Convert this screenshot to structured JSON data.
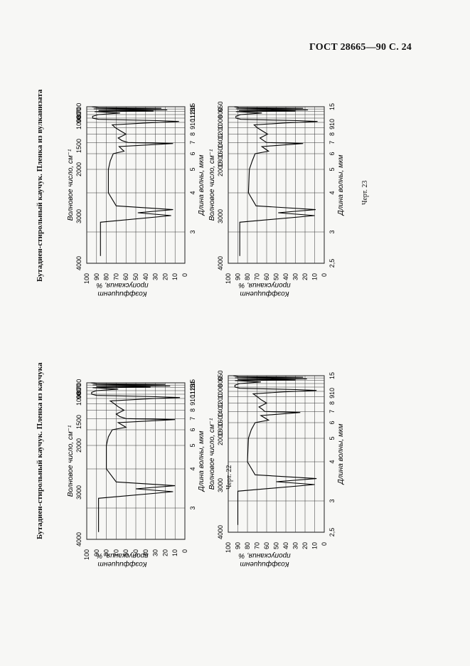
{
  "header": {
    "title": "ГОСТ 28665—90 С. 24"
  },
  "figures": [
    {
      "title": "Бутадиен-стирольный каучук. Пленка из каучука",
      "caption": "Черт. 22",
      "y_label_line1": "Коэффициент",
      "y_label_line2": "пропускания, %",
      "upper_axis_label": "Волновое число, см⁻¹",
      "lower_axis_label": "Длина волны, мкм"
    },
    {
      "title": "Бутадиен-стирольный каучук. Пленка из вулканизата",
      "caption": "Черт. 23",
      "y_label_line1": "Коэффициент",
      "y_label_line2": "пропускания, %",
      "upper_axis_label": "Волновое число, см⁻¹",
      "lower_axis_label": "Длина волны, мкм"
    }
  ],
  "chart_data": [
    {
      "type": "line",
      "panel": "Черт. 22 upper",
      "xlabel": "Волновое число, см⁻¹",
      "x2label": "Длина волны, мкм",
      "ylabel": "Коэффициент пропускания, %",
      "wavenumber_ticks": [
        "4000",
        "3000",
        "2000",
        "1500",
        "1000",
        "900",
        "800",
        "700"
      ],
      "wavelength_ticks": [
        "3",
        "4",
        "5",
        "6",
        "7",
        "8",
        "9",
        "10",
        "11",
        "12",
        "13",
        "14",
        "15"
      ],
      "y_ticks": [
        "100",
        "90",
        "80",
        "70",
        "60",
        "50",
        "40",
        "30",
        "20",
        "10",
        "0"
      ],
      "x_range_um": [
        2.5,
        15
      ],
      "y_range": [
        0,
        100
      ],
      "grid": true,
      "x_um": [
        2.6,
        3.2,
        3.35,
        3.42,
        3.5,
        3.6,
        4.0,
        5.0,
        5.5,
        6.0,
        6.2,
        6.6,
        6.9,
        7.0,
        7.2,
        7.5,
        8.0,
        8.5,
        9.0,
        9.5,
        9.9,
        10.0,
        10.2,
        10.4,
        10.7,
        11.0,
        11.5,
        12.0,
        12.5,
        13.0,
        13.2,
        13.4,
        13.6,
        14.0,
        14.3,
        14.5,
        15.0
      ],
      "y": [
        88,
        88,
        12,
        50,
        10,
        70,
        80,
        80,
        78,
        74,
        60,
        68,
        10,
        60,
        66,
        70,
        62,
        68,
        72,
        76,
        40,
        30,
        5,
        30,
        90,
        95,
        95,
        90,
        68,
        94,
        35,
        90,
        15,
        94,
        20,
        90,
        96
      ]
    },
    {
      "type": "line",
      "panel": "Черт. 22 lower",
      "xlabel": "Волновое число, см⁻¹",
      "x2label": "Длина волны, мкм",
      "ylabel": "Коэффициент пропускания, %",
      "wavenumber_ticks": [
        "4000",
        "3000",
        "2000",
        "1800",
        "1600",
        "1400",
        "1200",
        "1000",
        "800",
        "650"
      ],
      "wavelength_ticks": [
        "2,5",
        "3",
        "4",
        "5",
        "6",
        "7",
        "8",
        "9",
        "10",
        "15"
      ],
      "y_ticks": [
        "100",
        "90",
        "80",
        "70",
        "60",
        "50",
        "40",
        "30",
        "20",
        "10",
        "0"
      ],
      "x_range_um": [
        2.5,
        15
      ],
      "y_range": [
        0,
        100
      ],
      "grid": true,
      "x_um": [
        2.6,
        3.2,
        3.35,
        3.42,
        3.5,
        3.6,
        4.0,
        5.0,
        5.5,
        6.0,
        6.2,
        6.6,
        6.9,
        7.0,
        7.2,
        7.5,
        8.0,
        8.5,
        9.0,
        9.5,
        9.9,
        10.0,
        10.2,
        10.4,
        10.7,
        11.0,
        11.5,
        12.0,
        12.5,
        13.0,
        13.2,
        13.4,
        13.6,
        14.0,
        14.3,
        14.5,
        15.0
      ],
      "y": [
        90,
        90,
        10,
        50,
        8,
        72,
        80,
        79,
        76,
        72,
        58,
        66,
        25,
        62,
        64,
        68,
        60,
        66,
        70,
        74,
        42,
        28,
        8,
        30,
        88,
        93,
        93,
        88,
        66,
        93,
        30,
        90,
        18,
        93,
        22,
        90,
        95
      ]
    },
    {
      "type": "line",
      "panel": "Черт. 23 upper",
      "xlabel": "Волновое число, см⁻¹",
      "x2label": "Длина волны, мкм",
      "ylabel": "Коэффициент пропускания, %",
      "wavenumber_ticks": [
        "4000",
        "3000",
        "2000",
        "1500",
        "1000",
        "900",
        "800",
        "700"
      ],
      "wavelength_ticks": [
        "3",
        "4",
        "5",
        "6",
        "7",
        "8",
        "9",
        "10",
        "11",
        "12",
        "13",
        "14",
        "15"
      ],
      "y_ticks": [
        "100",
        "90",
        "80",
        "70",
        "60",
        "50",
        "40",
        "30",
        "20",
        "10",
        "0"
      ],
      "x_range_um": [
        2.5,
        15
      ],
      "y_range": [
        0,
        100
      ],
      "grid": true,
      "x_um": [
        2.6,
        3.2,
        3.35,
        3.42,
        3.5,
        3.6,
        4.0,
        5.0,
        5.5,
        6.0,
        6.2,
        6.6,
        6.9,
        7.0,
        7.2,
        7.5,
        8.0,
        8.5,
        9.0,
        9.5,
        9.9,
        10.0,
        10.2,
        10.4,
        10.7,
        11.0,
        11.5,
        12.0,
        12.5,
        13.0,
        13.2,
        13.4,
        13.6,
        14.0,
        14.3,
        14.5,
        15.0
      ],
      "y": [
        86,
        86,
        14,
        48,
        12,
        70,
        78,
        78,
        76,
        73,
        62,
        67,
        12,
        58,
        64,
        68,
        60,
        66,
        71,
        74,
        38,
        25,
        6,
        28,
        88,
        94,
        94,
        88,
        66,
        92,
        32,
        88,
        18,
        93,
        24,
        88,
        95
      ]
    },
    {
      "type": "line",
      "panel": "Черт. 23 lower",
      "xlabel": "Волновое число, см⁻¹",
      "x2label": "Длина волны, мкм",
      "ylabel": "Коэффициент пропускания, %",
      "wavenumber_ticks": [
        "4000",
        "3000",
        "2000",
        "1800",
        "1600",
        "1400",
        "1200",
        "1000",
        "800",
        "650"
      ],
      "wavelength_ticks": [
        "2,5",
        "3",
        "4",
        "5",
        "6",
        "7",
        "8",
        "9",
        "10",
        "15"
      ],
      "y_ticks": [
        "100",
        "90",
        "80",
        "70",
        "60",
        "50",
        "40",
        "30",
        "20",
        "10",
        "0"
      ],
      "x_range_um": [
        2.5,
        15
      ],
      "y_range": [
        0,
        100
      ],
      "grid": true,
      "x_um": [
        2.6,
        3.2,
        3.35,
        3.42,
        3.5,
        3.6,
        4.0,
        5.0,
        5.5,
        6.0,
        6.2,
        6.6,
        6.9,
        7.0,
        7.2,
        7.5,
        8.0,
        8.5,
        9.0,
        9.5,
        9.9,
        10.0,
        10.2,
        10.4,
        10.7,
        11.0,
        11.5,
        12.0,
        12.5,
        13.0,
        13.2,
        13.4,
        13.6,
        14.0,
        14.3,
        14.5,
        15.0
      ],
      "y": [
        88,
        88,
        10,
        48,
        9,
        71,
        79,
        78,
        75,
        72,
        58,
        65,
        22,
        60,
        63,
        67,
        59,
        65,
        70,
        73,
        40,
        26,
        7,
        28,
        87,
        92,
        92,
        87,
        65,
        92,
        30,
        89,
        17,
        92,
        22,
        89,
        94
      ]
    }
  ]
}
